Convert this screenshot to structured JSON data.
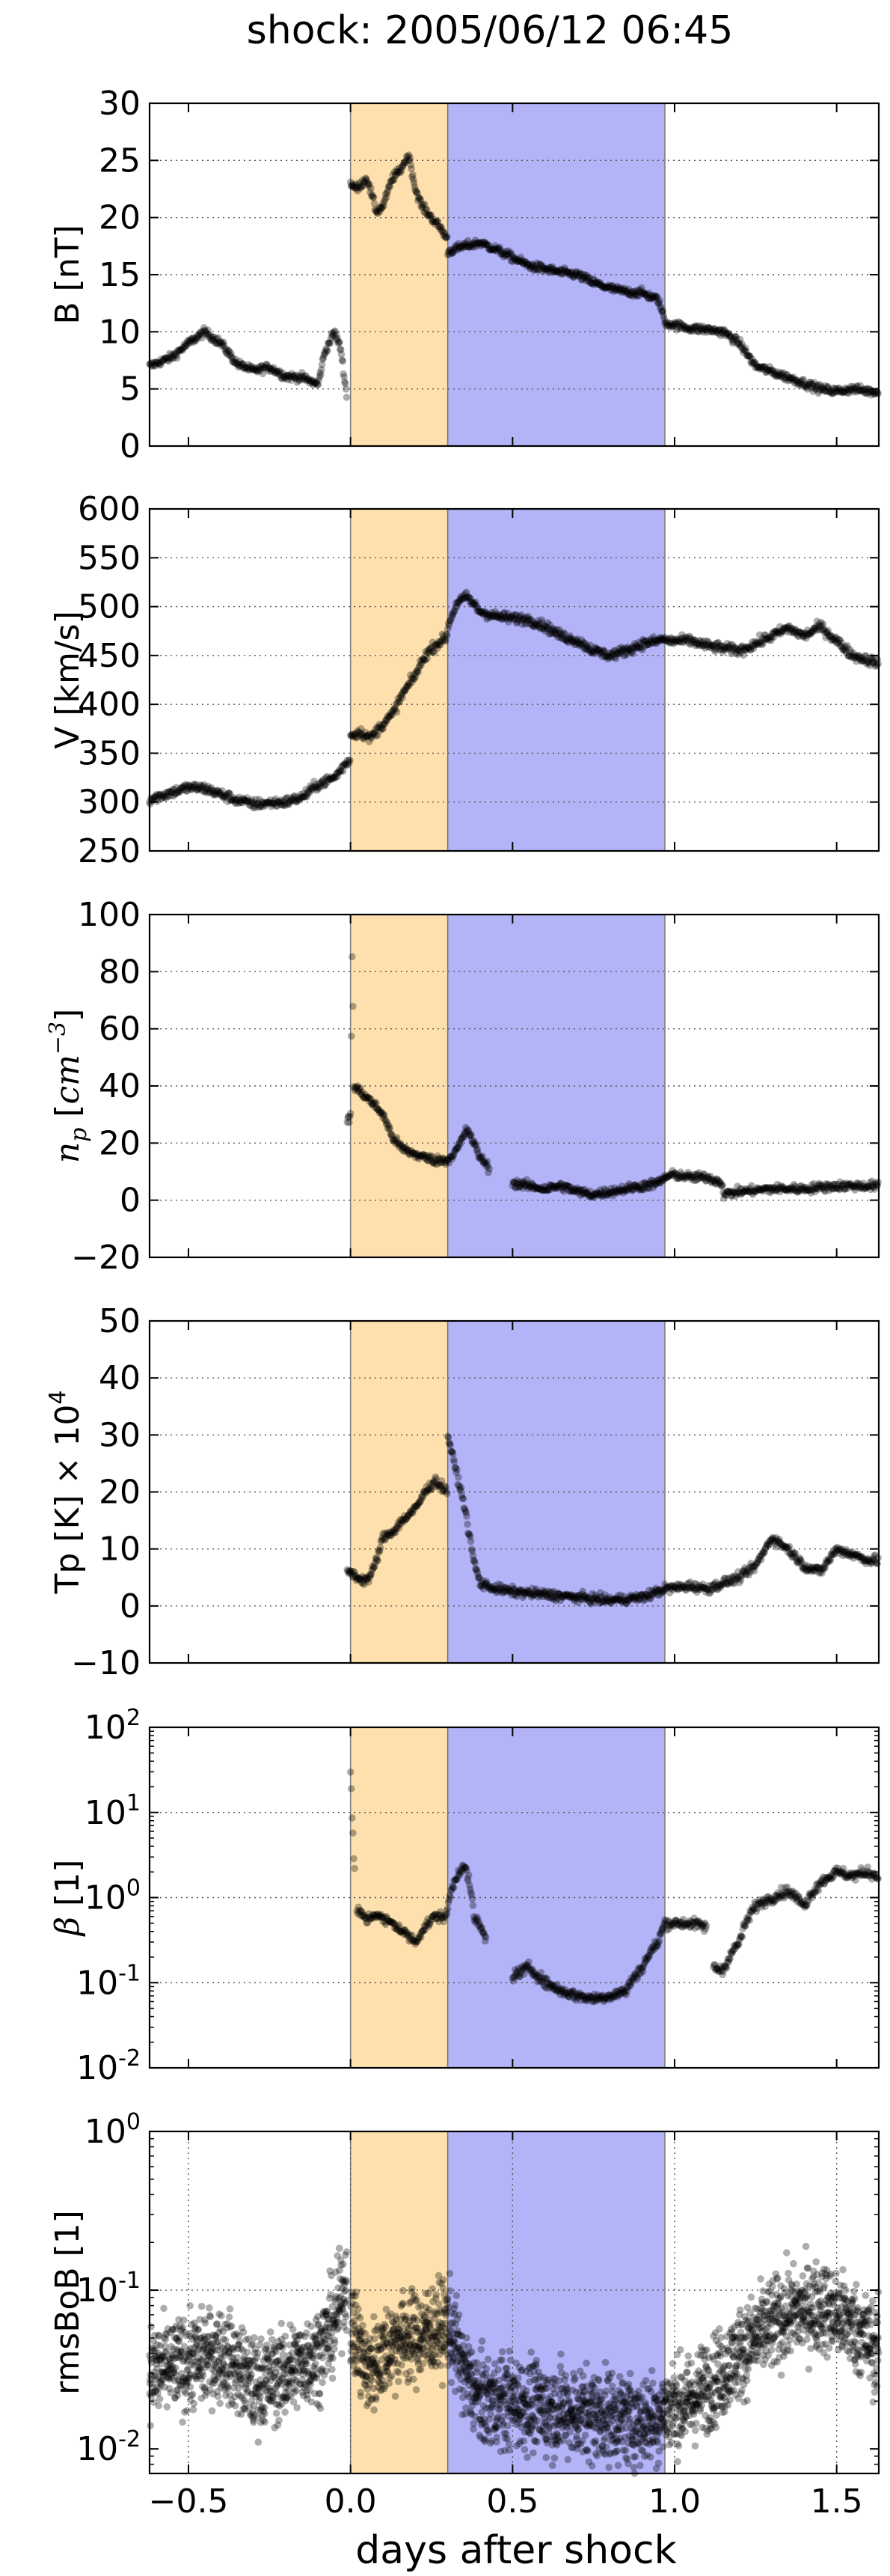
{
  "chart_data": {
    "type": "scatter",
    "title": "shock: 2005/06/12 06:45",
    "xlabel": "days after shock",
    "xlim": [
      -0.62,
      1.63
    ],
    "xticks": [
      -0.5,
      0.0,
      0.5,
      1.0,
      1.5
    ],
    "xtick_labels": [
      "−0.5",
      "0.0",
      "0.5",
      "1.0",
      "1.5"
    ],
    "shaded_regions": [
      {
        "x0": 0.0,
        "x1": 0.3,
        "color": "#fde0ad"
      },
      {
        "x0": 0.3,
        "x1": 0.97,
        "color": "#b3b3f8"
      }
    ],
    "grid": true,
    "point_color": "#000000",
    "panels": [
      {
        "id": "B",
        "ylabel": "B [nT]",
        "scale": "linear",
        "ylim": [
          0,
          30
        ],
        "yticks": [
          0,
          5,
          10,
          15,
          20,
          25,
          30
        ],
        "ytick_labels": [
          "0",
          "5",
          "10",
          "15",
          "20",
          "25",
          "30"
        ],
        "noise": 0.35,
        "series": [
          {
            "x": [
              -0.62,
              -0.55,
              -0.5,
              -0.45,
              -0.4,
              -0.35,
              -0.3,
              -0.25,
              -0.2,
              -0.15,
              -0.1,
              -0.08,
              -0.05,
              -0.03,
              -0.01
            ],
            "y": [
              7.0,
              7.8,
              9.0,
              10.0,
              9.0,
              7.2,
              6.6,
              6.9,
              6.1,
              6.0,
              5.4,
              8.2,
              10.0,
              8.5,
              4.0
            ]
          },
          {
            "x": [
              0.0,
              0.02,
              0.05,
              0.08,
              0.1,
              0.13,
              0.15,
              0.18,
              0.2,
              0.22,
              0.25,
              0.28,
              0.3
            ],
            "y": [
              23.0,
              22.5,
              23.5,
              20.5,
              21.0,
              23.5,
              24.0,
              25.5,
              22.5,
              21.0,
              20.0,
              19.0,
              18.0
            ]
          },
          {
            "x": [
              0.3,
              0.35,
              0.4,
              0.45,
              0.5,
              0.55,
              0.6,
              0.65,
              0.7,
              0.75,
              0.8,
              0.85,
              0.9,
              0.95,
              0.97
            ],
            "y": [
              17.0,
              17.5,
              17.8,
              17.2,
              16.5,
              15.8,
              15.5,
              15.2,
              15.0,
              14.3,
              13.8,
              13.5,
              13.4,
              12.8,
              11.0
            ]
          },
          {
            "x": [
              0.97,
              1.0,
              1.05,
              1.1,
              1.15,
              1.2,
              1.25,
              1.3,
              1.35,
              1.4,
              1.45,
              1.5,
              1.55,
              1.6,
              1.63
            ],
            "y": [
              10.8,
              10.6,
              10.3,
              10.2,
              10.0,
              9.0,
              7.0,
              6.5,
              6.0,
              5.5,
              5.0,
              4.8,
              5.0,
              4.8,
              4.7
            ]
          }
        ]
      },
      {
        "id": "V",
        "ylabel": "V [km/s]",
        "scale": "linear",
        "ylim": [
          250,
          600
        ],
        "yticks": [
          250,
          300,
          350,
          400,
          450,
          500,
          550,
          600
        ],
        "ytick_labels": [
          "250",
          "300",
          "350",
          "400",
          "450",
          "500",
          "550",
          "600"
        ],
        "noise": 5,
        "series": [
          {
            "x": [
              -0.62,
              -0.55,
              -0.5,
              -0.45,
              -0.4,
              -0.35,
              -0.3,
              -0.25,
              -0.2,
              -0.15,
              -0.1,
              -0.05,
              0.0
            ],
            "y": [
              303,
              310,
              315,
              314,
              308,
              302,
              298,
              299,
              300,
              305,
              318,
              325,
              345
            ]
          },
          {
            "x": [
              0.0,
              0.03,
              0.06,
              0.1,
              0.13,
              0.16,
              0.2,
              0.23,
              0.26,
              0.3
            ],
            "y": [
              368,
              372,
              365,
              380,
              390,
              410,
              430,
              450,
              460,
              470
            ]
          },
          {
            "x": [
              0.3,
              0.33,
              0.36,
              0.4,
              0.45,
              0.5,
              0.55,
              0.6,
              0.65,
              0.7,
              0.75,
              0.8,
              0.85,
              0.9,
              0.95,
              0.97
            ],
            "y": [
              480,
              505,
              510,
              495,
              490,
              488,
              487,
              480,
              470,
              465,
              455,
              450,
              455,
              462,
              465,
              468
            ]
          },
          {
            "x": [
              0.97,
              1.05,
              1.1,
              1.2,
              1.25,
              1.3,
              1.35,
              1.4,
              1.45,
              1.5,
              1.55,
              1.63
            ],
            "y": [
              465,
              465,
              460,
              455,
              462,
              470,
              478,
              470,
              480,
              465,
              450,
              442
            ]
          }
        ]
      },
      {
        "id": "np",
        "ylabel": "n",
        "ylabel_sub": "p",
        "ylabel_unit_open": " [",
        "ylabel_unit": "cm",
        "ylabel_unit_sup": "−3",
        "ylabel_unit_close": "]",
        "scale": "linear",
        "ylim": [
          -20,
          100
        ],
        "yticks": [
          -20,
          0,
          20,
          40,
          60,
          80,
          100
        ],
        "ytick_labels": [
          "−20",
          "0",
          "20",
          "40",
          "60",
          "80",
          "100"
        ],
        "noise": 1.5,
        "series": [
          {
            "x": [
              -0.01,
              0.0,
              0.005,
              0.01
            ],
            "y": [
              27,
              30,
              85,
              50
            ]
          },
          {
            "x": [
              0.01,
              0.03,
              0.06,
              0.1,
              0.13,
              0.16,
              0.2,
              0.23,
              0.26,
              0.3
            ],
            "y": [
              40,
              38,
              35,
              30,
              22,
              18,
              16,
              15,
              14,
              14
            ]
          },
          {
            "x": [
              0.3,
              0.33,
              0.36,
              0.4,
              0.43
            ],
            "y": [
              14,
              18,
              25,
              15,
              11
            ]
          },
          {
            "x": [
              0.5,
              0.55,
              0.6,
              0.65,
              0.7,
              0.75,
              0.8,
              0.85,
              0.9,
              0.95,
              0.97,
              1.0,
              1.05,
              1.1,
              1.15
            ],
            "y": [
              6,
              5,
              4,
              5,
              3,
              2,
              3,
              4,
              5,
              6,
              8,
              9,
              8,
              8,
              6
            ]
          },
          {
            "x": [
              1.15,
              1.2,
              1.3,
              1.4,
              1.5,
              1.63
            ],
            "y": [
              2,
              3,
              4,
              4,
              5,
              5
            ]
          }
        ]
      },
      {
        "id": "Tp",
        "ylabel": "Tp [K] × 10",
        "ylabel_sup": "4",
        "scale": "linear",
        "ylim": [
          -10,
          50
        ],
        "yticks": [
          -10,
          0,
          10,
          20,
          30,
          40,
          50
        ],
        "ytick_labels": [
          "−10",
          "0",
          "10",
          "20",
          "30",
          "40",
          "50"
        ],
        "noise": 0.8,
        "series": [
          {
            "x": [
              -0.01,
              0.0,
              0.02,
              0.04,
              0.06,
              0.08,
              0.1,
              0.13,
              0.16,
              0.2,
              0.23,
              0.26,
              0.3
            ],
            "y": [
              6,
              6,
              5,
              4.5,
              5,
              8,
              12,
              13,
              15,
              17,
              20,
              22,
              20
            ]
          },
          {
            "x": [
              0.3,
              0.32,
              0.35,
              0.38,
              0.4,
              0.45,
              0.5,
              0.6,
              0.7,
              0.8,
              0.9,
              0.97
            ],
            "y": [
              30,
              25,
              18,
              8,
              4,
              3,
              2.5,
              2,
              1.5,
              1,
              1.5,
              3
            ]
          },
          {
            "x": [
              0.97,
              1.05,
              1.1,
              1.2,
              1.25,
              1.3,
              1.35,
              1.4,
              1.45,
              1.5,
              1.55,
              1.6,
              1.63
            ],
            "y": [
              3,
              3.5,
              3,
              5,
              7,
              12,
              10,
              7,
              6,
              10,
              9,
              8,
              8
            ]
          }
        ]
      },
      {
        "id": "beta",
        "ylabel_symbol": "β",
        "ylabel_unit": " [1]",
        "scale": "log",
        "ylim": [
          0.01,
          100
        ],
        "yticks": [
          0.01,
          0.1,
          1,
          10,
          100
        ],
        "ytick_base": "10",
        "ytick_exps": [
          "-2",
          "-1",
          "0",
          "1",
          "2"
        ],
        "noise": 0.06,
        "series": [
          {
            "x": [
              0.0,
              0.005,
              0.01,
              0.015
            ],
            "y": [
              30,
              8,
              3,
              1.5
            ]
          },
          {
            "x": [
              0.02,
              0.05,
              0.08,
              0.1,
              0.13,
              0.16,
              0.2,
              0.23,
              0.26,
              0.3
            ],
            "y": [
              0.7,
              0.55,
              0.65,
              0.55,
              0.5,
              0.4,
              0.3,
              0.45,
              0.6,
              0.6
            ]
          },
          {
            "x": [
              0.3,
              0.32,
              0.35,
              0.38,
              0.42
            ],
            "y": [
              0.8,
              1.5,
              2.5,
              0.6,
              0.3
            ]
          },
          {
            "x": [
              0.5,
              0.55,
              0.6,
              0.65,
              0.7,
              0.75,
              0.8,
              0.85,
              0.9,
              0.95,
              0.97
            ],
            "y": [
              0.12,
              0.15,
              0.1,
              0.08,
              0.07,
              0.065,
              0.07,
              0.08,
              0.15,
              0.3,
              0.5
            ]
          },
          {
            "x": [
              0.97,
              1.05,
              1.1
            ],
            "y": [
              0.5,
              0.5,
              0.45
            ]
          },
          {
            "x": [
              1.12,
              1.15,
              1.2,
              1.25,
              1.3,
              1.35,
              1.4,
              1.45,
              1.5,
              1.55,
              1.6,
              1.63
            ],
            "y": [
              0.15,
              0.14,
              0.3,
              0.8,
              1.0,
              1.2,
              0.8,
              1.5,
              2.0,
              1.8,
              2.0,
              1.7
            ]
          }
        ]
      },
      {
        "id": "rmsBoB",
        "ylabel": "rmsBoB [1]",
        "scale": "log",
        "ylim": [
          0.007,
          1.0
        ],
        "yticks": [
          0.01,
          0.1,
          1
        ],
        "ytick_base": "10",
        "ytick_exps": [
          "-2",
          "-1",
          "0"
        ],
        "noise": 0.28,
        "density": 3,
        "series": [
          {
            "x": [
              -0.62,
              -0.5,
              -0.4,
              -0.3,
              -0.2,
              -0.1,
              -0.05,
              -0.01
            ],
            "y": [
              0.03,
              0.035,
              0.04,
              0.025,
              0.03,
              0.04,
              0.06,
              0.12
            ]
          },
          {
            "x": [
              0.0,
              0.05,
              0.1,
              0.15,
              0.2,
              0.25,
              0.3
            ],
            "y": [
              0.06,
              0.03,
              0.04,
              0.05,
              0.05,
              0.055,
              0.06
            ]
          },
          {
            "x": [
              0.3,
              0.35,
              0.4,
              0.5,
              0.6,
              0.7,
              0.8,
              0.9,
              0.97
            ],
            "y": [
              0.06,
              0.03,
              0.02,
              0.02,
              0.018,
              0.017,
              0.016,
              0.015,
              0.017
            ]
          },
          {
            "x": [
              0.97,
              1.05,
              1.15,
              1.25,
              1.35,
              1.45,
              1.55,
              1.63
            ],
            "y": [
              0.018,
              0.02,
              0.03,
              0.05,
              0.07,
              0.08,
              0.06,
              0.04
            ]
          }
        ]
      }
    ]
  }
}
